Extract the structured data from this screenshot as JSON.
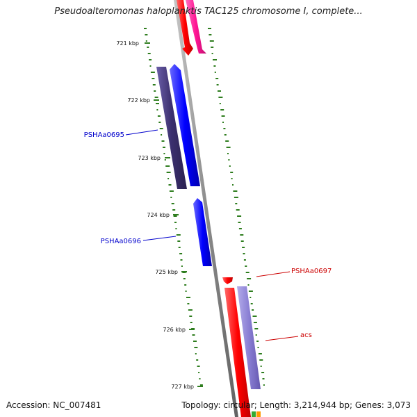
{
  "header": {
    "title": "Pseudoalteromonas haloplanktis TAC125 chromosome I, complete..."
  },
  "footer": {
    "accession": "Accession: NC_007481",
    "summary": "Topology: circular; Length: 3,214,944 bp; Genes: 3,073"
  },
  "scale": {
    "ticks": [
      "721 kbp",
      "722 kbp",
      "723 kbp",
      "724 kbp",
      "725 kbp",
      "726 kbp",
      "727 kbp"
    ]
  },
  "genes": [
    {
      "label": "PSHAa0695",
      "color": "#0000cc"
    },
    {
      "label": "PSHAa0696",
      "color": "#0000cc"
    },
    {
      "label": "PSHAa0697",
      "color": "#cc0000"
    },
    {
      "label": "acs",
      "color": "#cc0000"
    }
  ],
  "colors": {
    "backbone": "#8c8c8c",
    "forward_cds": "#0000ff",
    "reverse_cds": "#ff0000",
    "pink_cds": "#ff1493",
    "dark_purple": "#3b2f6e",
    "light_purple": "#8a7fd4",
    "gc_dots": "#2e7d1e"
  }
}
